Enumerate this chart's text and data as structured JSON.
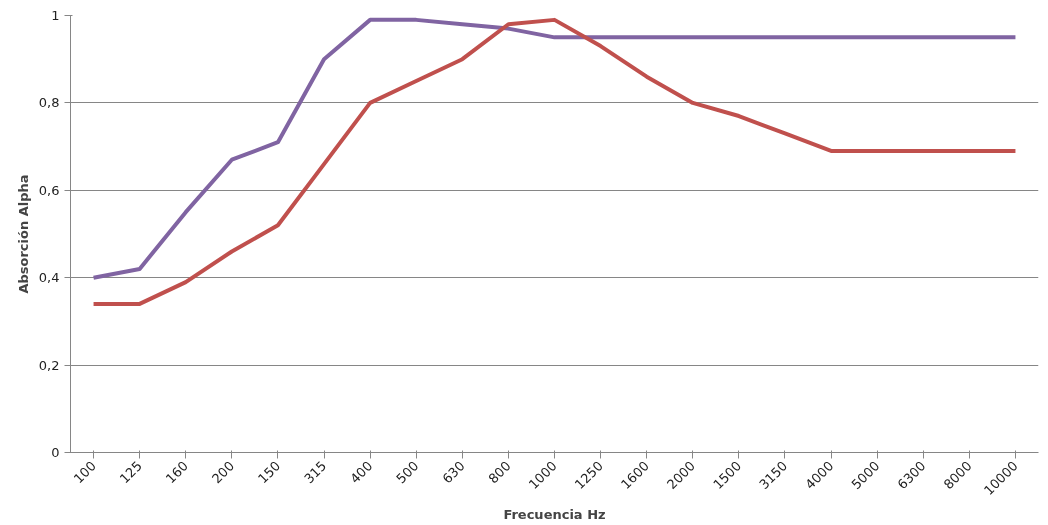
{
  "chart_data": {
    "type": "line",
    "xlabel": "Frecuencia Hz",
    "ylabel": "Absorción Alpha",
    "categories": [
      "100",
      "125",
      "160",
      "200",
      "150",
      "315",
      "400",
      "500",
      "630",
      "800",
      "1000",
      "1250",
      "1600",
      "2000",
      "1500",
      "3150",
      "4000",
      "5000",
      "6300",
      "8000",
      "10000"
    ],
    "series": [
      {
        "color": "#8064a2",
        "values": [
          0.4,
          0.42,
          0.55,
          0.67,
          0.71,
          0.9,
          0.99,
          0.99,
          0.98,
          0.97,
          0.95,
          0.95,
          0.95,
          0.95,
          0.95,
          0.95,
          0.95,
          0.95,
          0.95,
          0.95,
          0.95
        ]
      },
      {
        "color": "#c0504d",
        "values": [
          0.34,
          0.34,
          0.39,
          0.46,
          0.52,
          0.66,
          0.8,
          0.85,
          0.9,
          0.98,
          0.99,
          0.93,
          0.86,
          0.8,
          0.77,
          0.73,
          0.69,
          0.69,
          0.69,
          0.69,
          0.69
        ]
      }
    ],
    "ylim": [
      0,
      1
    ],
    "yticks": [
      0,
      {
        "value": 0.2,
        "label": "0,2"
      },
      {
        "value": 0.4,
        "label": "0,4"
      },
      {
        "value": 0.6,
        "label": "0,6"
      },
      {
        "value": 0.8,
        "label": "0,8"
      },
      1
    ],
    "grid": "y",
    "marker": "none",
    "line_style": "solid"
  }
}
